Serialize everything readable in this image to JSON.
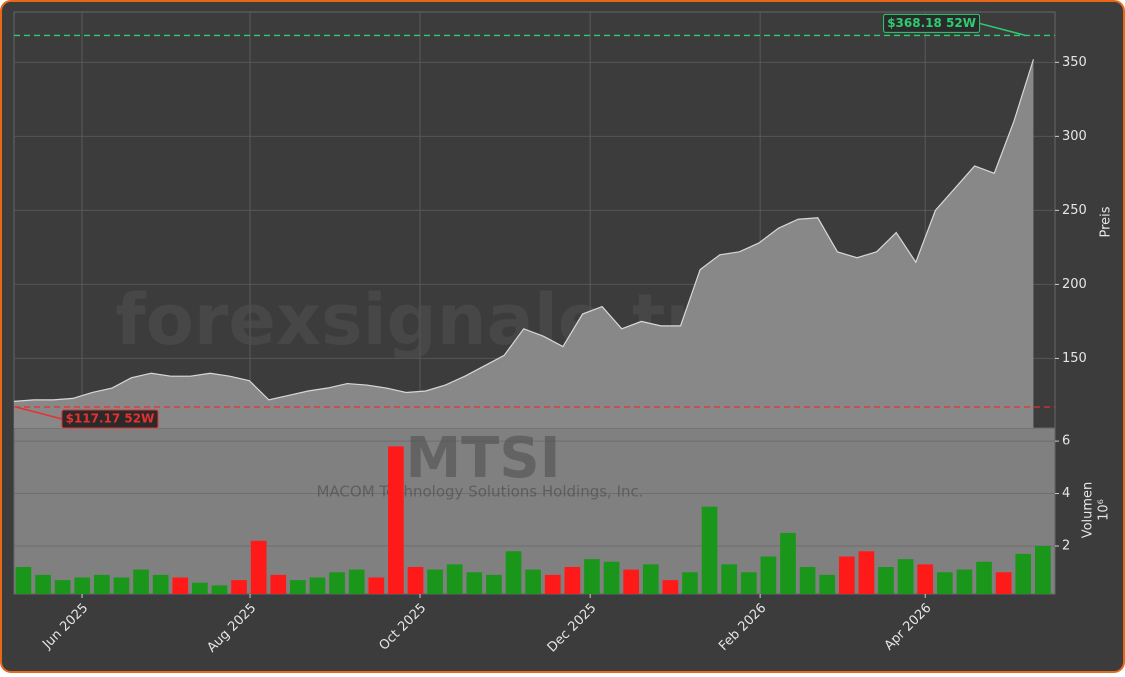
{
  "chart_data": [
    {
      "type": "area",
      "watermark": "forexsignale.trade",
      "x": [
        0,
        1,
        2,
        3,
        4,
        5,
        6,
        7,
        8,
        9,
        10,
        11,
        12,
        13,
        14,
        15,
        16,
        17,
        18,
        19,
        20,
        21,
        22,
        23,
        24,
        25,
        26,
        27,
        28,
        29,
        30,
        31,
        32,
        33,
        34,
        35,
        36,
        37,
        38,
        39,
        40,
        41,
        42,
        43,
        44,
        45,
        46,
        47,
        48,
        49,
        50,
        51,
        52
      ],
      "values": [
        121,
        122,
        122,
        123,
        127,
        130,
        137,
        140,
        138,
        138,
        140,
        138,
        135,
        122,
        125,
        128,
        130,
        133,
        132,
        130,
        127,
        128,
        132,
        138,
        145,
        152,
        170,
        165,
        158,
        180,
        185,
        170,
        175,
        172,
        172,
        210,
        220,
        222,
        228,
        238,
        244,
        245,
        222,
        218,
        222,
        235,
        215,
        250,
        265,
        280,
        275,
        310,
        352
      ],
      "color": "#888888",
      "line_color": "#d8d8d8",
      "xlim": [
        0,
        53.1
      ],
      "xticks": [
        {
          "value": 3.47,
          "label": "Jun 2025"
        },
        {
          "value": 12.04,
          "label": "Aug 2025"
        },
        {
          "value": 20.71,
          "label": "Oct 2025"
        },
        {
          "value": 29.39,
          "label": "Dec 2025"
        },
        {
          "value": 38.06,
          "label": "Feb 2026"
        },
        {
          "value": 46.48,
          "label": "Apr 2026"
        }
      ],
      "ylim": [
        103,
        384
      ],
      "yticks": [
        150,
        200,
        250,
        300,
        350
      ],
      "y_label": "Preis",
      "grid": true,
      "annotations": [
        {
          "text": "$368.18 52W",
          "value": 368.18,
          "x": 51.6,
          "color": "#2ecc71"
        },
        {
          "text": "$117.17 52W",
          "value": 117.17,
          "x": 0.1,
          "color": "#e83030"
        }
      ]
    },
    {
      "type": "bar",
      "title": "MTSI",
      "subtitle": "MACOM Technology Solutions Holdings, Inc.",
      "x": [
        0,
        1,
        2,
        3,
        4,
        5,
        6,
        7,
        8,
        9,
        10,
        11,
        12,
        13,
        14,
        15,
        16,
        17,
        18,
        19,
        20,
        21,
        22,
        23,
        24,
        25,
        26,
        27,
        28,
        29,
        30,
        31,
        32,
        33,
        34,
        35,
        36,
        37,
        38,
        39,
        40,
        41,
        42,
        43,
        44,
        45,
        46,
        47,
        48,
        49,
        50,
        51,
        52
      ],
      "values": [
        1.2,
        0.9,
        0.7,
        0.8,
        0.9,
        0.8,
        1.1,
        0.9,
        0.8,
        0.6,
        0.5,
        0.7,
        2.2,
        0.9,
        0.7,
        0.8,
        1.0,
        1.1,
        0.8,
        5.8,
        1.2,
        1.1,
        1.3,
        1.0,
        0.9,
        1.8,
        1.1,
        0.9,
        1.2,
        1.5,
        1.4,
        1.1,
        1.3,
        0.7,
        1.0,
        3.5,
        1.3,
        1.0,
        1.6,
        2.5,
        1.2,
        0.9,
        1.6,
        1.8,
        1.2,
        1.5,
        1.3,
        1.0,
        1.1,
        1.4,
        1.0,
        1.7,
        2.0
      ],
      "up_color": "#1a961a",
      "down_color": "#ff1a1a",
      "xlim": [
        0,
        53.1
      ],
      "ylim": [
        0.17,
        6.5
      ],
      "yticks": [
        2,
        4,
        6
      ],
      "y_label": "Volumen",
      "y_unit": "10⁶",
      "grid": true
    }
  ]
}
